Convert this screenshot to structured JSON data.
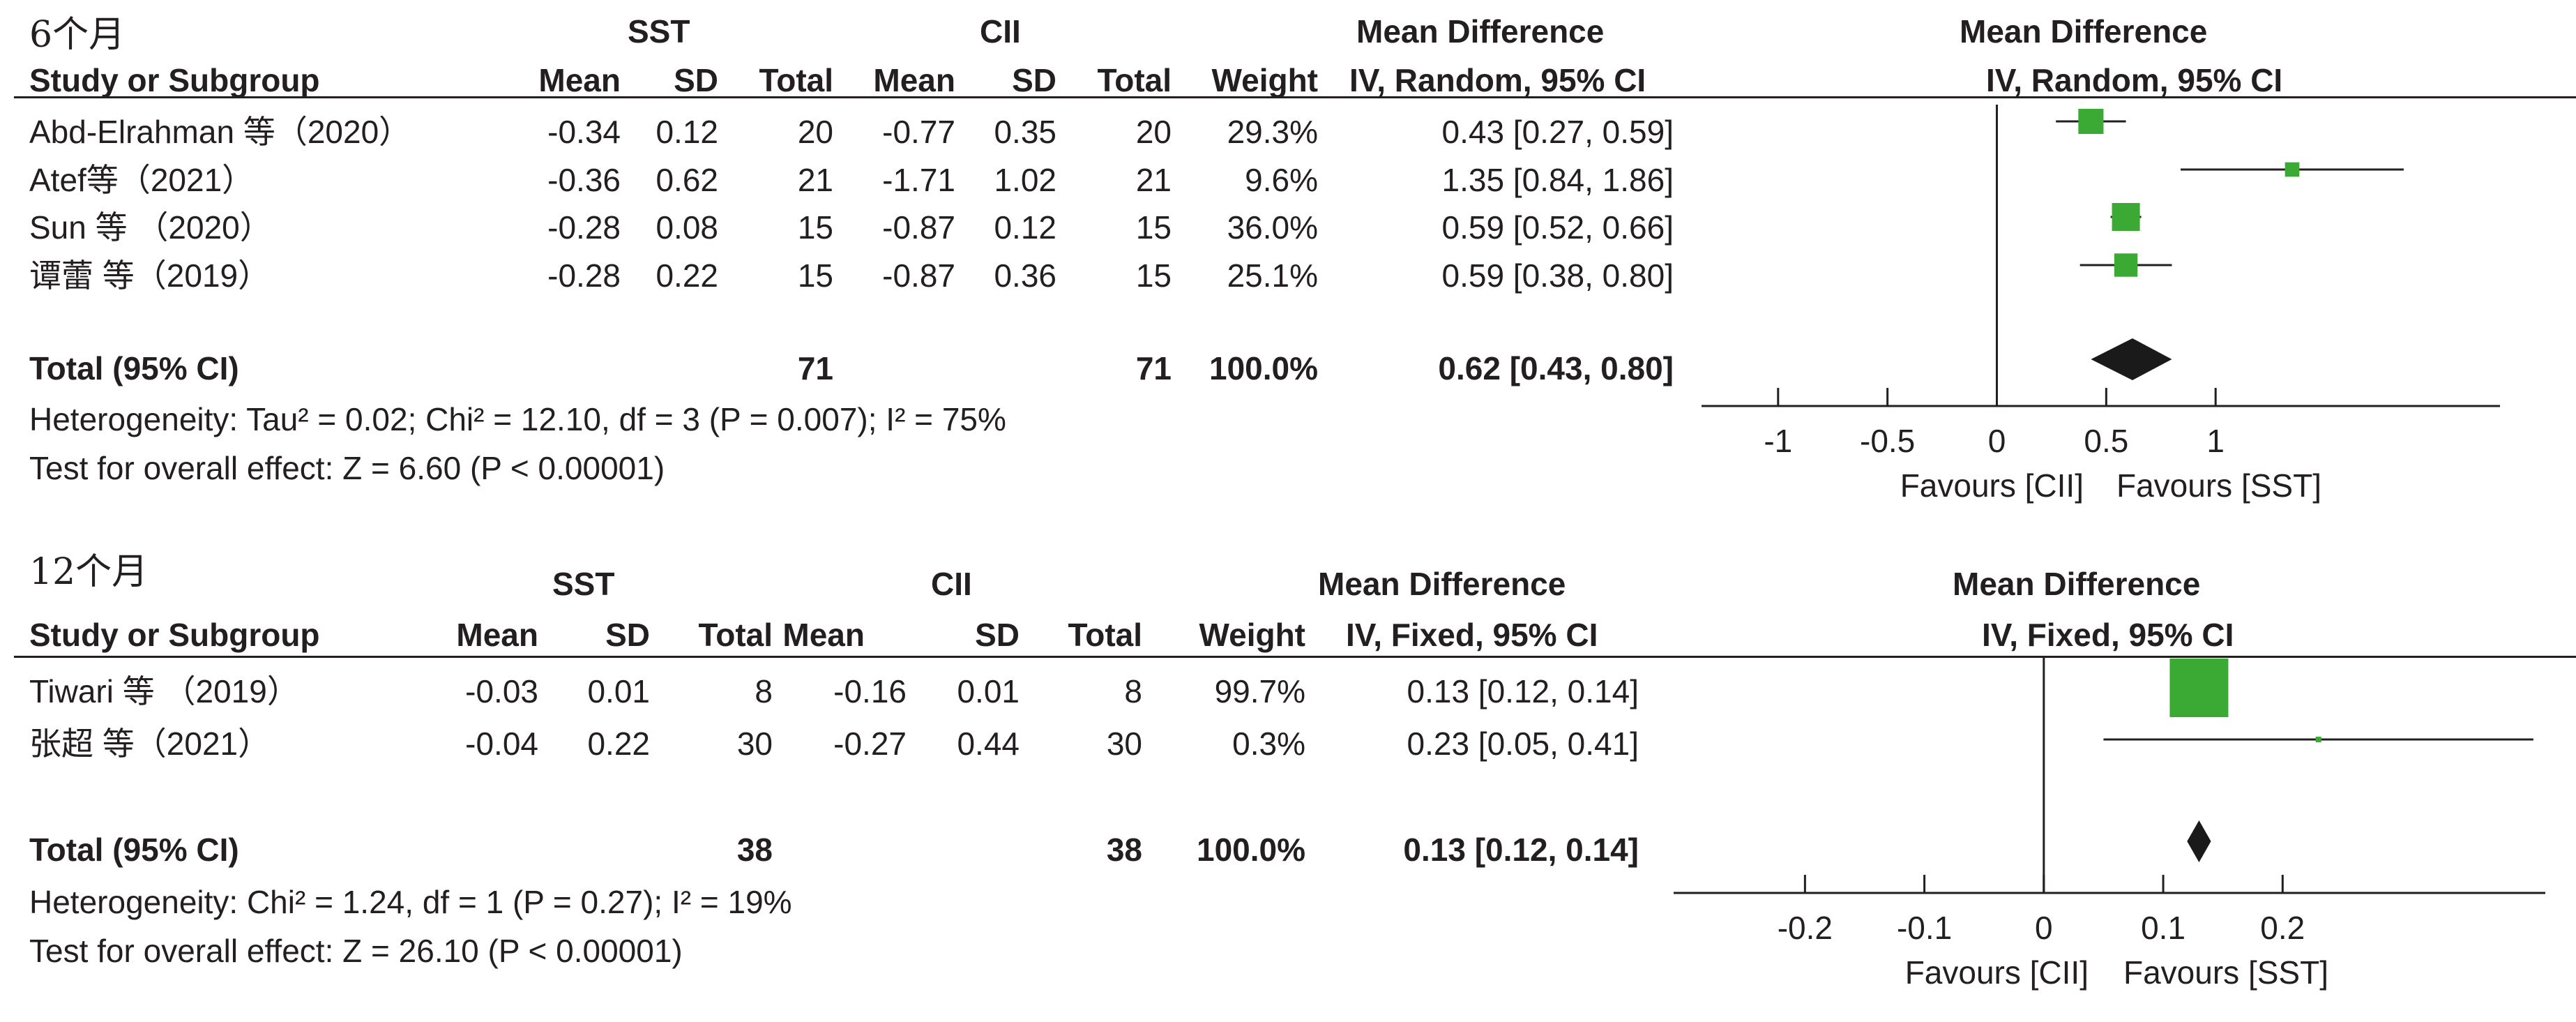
{
  "chart_data": [
    {
      "type": "forest",
      "period_label": "6个月",
      "group1": "SST",
      "group2": "CII",
      "effect_header": "Mean Difference",
      "effect_method": "IV, Random, 95% CI",
      "columns": [
        "Study or Subgroup",
        "Mean",
        "SD",
        "Total",
        "Mean",
        "SD",
        "Total",
        "Weight",
        "IV, Random, 95% CI"
      ],
      "studies": [
        {
          "study": "Abd-Elrahman 等（2020）",
          "g1_mean": "-0.34",
          "g1_sd": "0.12",
          "g1_total": "20",
          "g2_mean": "-0.77",
          "g2_sd": "0.35",
          "g2_total": "20",
          "weight": "29.3%",
          "ci_text": "0.43 [0.27, 0.59]",
          "md": 0.43,
          "lo": 0.27,
          "hi": 0.59,
          "w": 29.3
        },
        {
          "study": "Atef等（2021）",
          "g1_mean": "-0.36",
          "g1_sd": "0.62",
          "g1_total": "21",
          "g2_mean": "-1.71",
          "g2_sd": "1.02",
          "g2_total": "21",
          "weight": "9.6%",
          "ci_text": "1.35 [0.84, 1.86]",
          "md": 1.35,
          "lo": 0.84,
          "hi": 1.86,
          "w": 9.6
        },
        {
          "study": "Sun 等 （2020）",
          "g1_mean": "-0.28",
          "g1_sd": "0.08",
          "g1_total": "15",
          "g2_mean": "-0.87",
          "g2_sd": "0.12",
          "g2_total": "15",
          "weight": "36.0%",
          "ci_text": "0.59 [0.52, 0.66]",
          "md": 0.59,
          "lo": 0.52,
          "hi": 0.66,
          "w": 36.0
        },
        {
          "study": "谭蕾 等（2019）",
          "g1_mean": "-0.28",
          "g1_sd": "0.22",
          "g1_total": "15",
          "g2_mean": "-0.87",
          "g2_sd": "0.36",
          "g2_total": "15",
          "weight": "25.1%",
          "ci_text": "0.59 [0.38, 0.80]",
          "md": 0.59,
          "lo": 0.38,
          "hi": 0.8,
          "w": 25.1
        }
      ],
      "total": {
        "label": "Total (95% CI)",
        "g1_total": "71",
        "g2_total": "71",
        "weight": "100.0%",
        "ci_text": "0.62 [0.43, 0.80]",
        "md": 0.62,
        "lo": 0.43,
        "hi": 0.8
      },
      "heterogeneity": "Heterogeneity: Tau² = 0.02; Chi² = 12.10, df = 3 (P = 0.007); I² = 75%",
      "overall_effect": "Test for overall effect: Z = 6.60 (P < 0.00001)",
      "axis": {
        "xlim": [
          -1.35,
          2.3
        ],
        "ticks": [
          -1,
          -0.5,
          0,
          0.5,
          1
        ],
        "tick_labels": [
          "-1",
          "-0.5",
          "0",
          "0.5",
          "1"
        ],
        "favours_left": "Favours [CII]",
        "favours_right": "Favours [SST]"
      }
    },
    {
      "type": "forest",
      "period_label": "12个月",
      "group1": "SST",
      "group2": "CII",
      "effect_header": "Mean Difference",
      "effect_method": "IV, Fixed, 95% CI",
      "columns": [
        "Study or Subgroup",
        "Mean",
        "SD",
        "Total",
        "Mean",
        "SD",
        "Total",
        "Weight",
        "IV, Fixed, 95% CI"
      ],
      "studies": [
        {
          "study": "Tiwari 等 （2019）",
          "g1_mean": "-0.03",
          "g1_sd": "0.01",
          "g1_total": "8",
          "g2_mean": "-0.16",
          "g2_sd": "0.01",
          "g2_total": "8",
          "weight": "99.7%",
          "ci_text": "0.13 [0.12, 0.14]",
          "md": 0.13,
          "lo": 0.12,
          "hi": 0.14,
          "w": 99.7
        },
        {
          "study": "张超 等（2021）",
          "g1_mean": "-0.04",
          "g1_sd": "0.22",
          "g1_total": "30",
          "g2_mean": "-0.27",
          "g2_sd": "0.44",
          "g2_total": "30",
          "weight": "0.3%",
          "ci_text": "0.23 [0.05, 0.41]",
          "md": 0.23,
          "lo": 0.05,
          "hi": 0.41,
          "w": 0.3
        }
      ],
      "total": {
        "label": "Total (95% CI)",
        "g1_total": "38",
        "g2_total": "38",
        "weight": "100.0%",
        "ci_text": "0.13 [0.12, 0.14]",
        "md": 0.13,
        "lo": 0.12,
        "hi": 0.14
      },
      "heterogeneity": "Heterogeneity: Chi² = 1.24, df = 1 (P = 0.27); I² = 19%",
      "overall_effect": "Test for overall effect: Z = 26.10 (P < 0.00001)",
      "axis": {
        "xlim": [
          -0.31,
          0.42
        ],
        "ticks": [
          -0.2,
          -0.1,
          0,
          0.1,
          0.2
        ],
        "tick_labels": [
          "-0.2",
          "-0.1",
          "0",
          "0.1",
          "0.2"
        ],
        "favours_left": "Favours [CII]",
        "favours_right": "Favours [SST]"
      }
    }
  ],
  "colors": {
    "square": "#3aaa35",
    "diamond": "#1a1a1a",
    "ink": "#231f20"
  }
}
